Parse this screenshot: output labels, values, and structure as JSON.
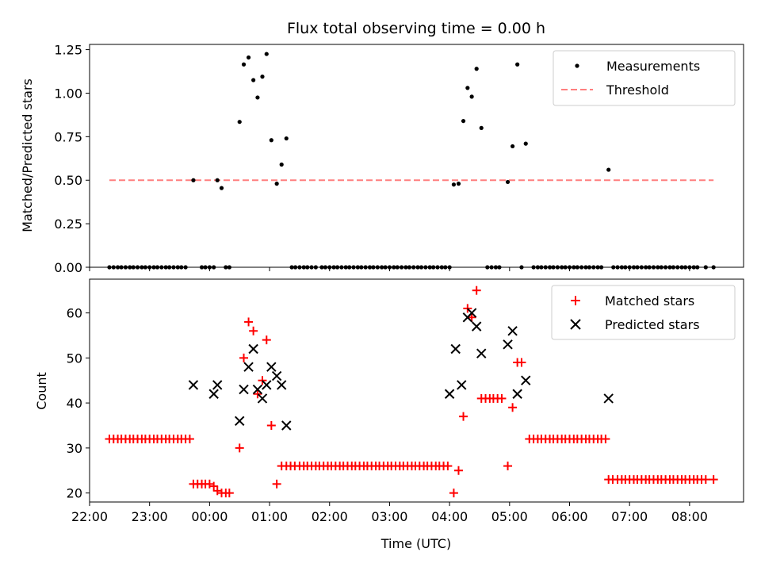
{
  "chart_data": {
    "type": "scatter",
    "title": "Flux total observing time = 0.00 h",
    "xlabel": "Time (UTC)",
    "xlim": [
      22.0,
      32.9
    ],
    "x_ticks": [
      22,
      23,
      24,
      25,
      26,
      27,
      28,
      29,
      30,
      31,
      32
    ],
    "x_tick_labels": [
      "22:00",
      "23:00",
      "00:00",
      "01:00",
      "02:00",
      "03:00",
      "04:00",
      "05:00",
      "06:00",
      "07:00",
      "08:00"
    ],
    "colors": {
      "measurements": "#000000",
      "threshold": "#ff7f7f",
      "matched": "#ff0000",
      "predicted": "#000000"
    },
    "top": {
      "ylabel": "Matched/Predicted stars",
      "ylim": [
        0,
        1.28
      ],
      "y_ticks": [
        0,
        0.25,
        0.5,
        0.75,
        1.0,
        1.25
      ],
      "y_tick_labels": [
        "0.00",
        "0.25",
        "0.50",
        "0.75",
        "1.00",
        "1.25"
      ],
      "legend": {
        "placement": "upper right",
        "measurements_label": "Measurements",
        "threshold_label": "Threshold"
      },
      "threshold": {
        "y": 0.5,
        "x": [
          22.33,
          32.4
        ]
      },
      "measurements": [
        [
          22.33,
          0
        ],
        [
          22.4,
          0
        ],
        [
          22.47,
          0
        ],
        [
          22.53,
          0
        ],
        [
          22.6,
          0
        ],
        [
          22.67,
          0
        ],
        [
          22.73,
          0
        ],
        [
          22.8,
          0
        ],
        [
          22.87,
          0
        ],
        [
          22.93,
          0
        ],
        [
          23.0,
          0
        ],
        [
          23.07,
          0
        ],
        [
          23.13,
          0
        ],
        [
          23.2,
          0
        ],
        [
          23.27,
          0
        ],
        [
          23.33,
          0
        ],
        [
          23.4,
          0
        ],
        [
          23.47,
          0
        ],
        [
          23.53,
          0
        ],
        [
          23.6,
          0
        ],
        [
          23.73,
          0.5
        ],
        [
          23.87,
          0
        ],
        [
          23.93,
          0
        ],
        [
          24.0,
          0
        ],
        [
          24.07,
          0
        ],
        [
          24.13,
          0.5
        ],
        [
          24.2,
          0.455
        ],
        [
          24.27,
          0
        ],
        [
          24.33,
          0
        ],
        [
          24.5,
          0.835
        ],
        [
          24.57,
          1.165
        ],
        [
          24.65,
          1.205
        ],
        [
          24.73,
          1.075
        ],
        [
          24.8,
          0.975
        ],
        [
          24.88,
          1.095
        ],
        [
          24.95,
          1.225
        ],
        [
          25.03,
          0.73
        ],
        [
          25.12,
          0.48
        ],
        [
          25.2,
          0.59
        ],
        [
          25.28,
          0.74
        ],
        [
          25.37,
          0
        ],
        [
          25.43,
          0
        ],
        [
          25.5,
          0
        ],
        [
          25.57,
          0
        ],
        [
          25.63,
          0
        ],
        [
          25.7,
          0
        ],
        [
          25.77,
          0
        ],
        [
          25.87,
          0
        ],
        [
          25.93,
          0
        ],
        [
          26.0,
          0
        ],
        [
          26.07,
          0
        ],
        [
          26.13,
          0
        ],
        [
          26.2,
          0
        ],
        [
          26.27,
          0
        ],
        [
          26.33,
          0
        ],
        [
          26.4,
          0
        ],
        [
          26.47,
          0
        ],
        [
          26.53,
          0
        ],
        [
          26.6,
          0
        ],
        [
          26.67,
          0
        ],
        [
          26.73,
          0
        ],
        [
          26.8,
          0
        ],
        [
          26.87,
          0
        ],
        [
          26.93,
          0
        ],
        [
          27.0,
          0
        ],
        [
          27.07,
          0
        ],
        [
          27.13,
          0
        ],
        [
          27.2,
          0
        ],
        [
          27.27,
          0
        ],
        [
          27.33,
          0
        ],
        [
          27.4,
          0
        ],
        [
          27.47,
          0
        ],
        [
          27.53,
          0
        ],
        [
          27.6,
          0
        ],
        [
          27.67,
          0
        ],
        [
          27.73,
          0
        ],
        [
          27.8,
          0
        ],
        [
          27.87,
          0
        ],
        [
          27.93,
          0
        ],
        [
          28.0,
          0
        ],
        [
          28.07,
          0.475
        ],
        [
          28.15,
          0.48
        ],
        [
          28.23,
          0.84
        ],
        [
          28.3,
          1.03
        ],
        [
          28.37,
          0.98
        ],
        [
          28.45,
          1.14
        ],
        [
          28.53,
          0.8
        ],
        [
          28.63,
          0
        ],
        [
          28.7,
          0
        ],
        [
          28.77,
          0
        ],
        [
          28.83,
          0
        ],
        [
          28.97,
          0.49
        ],
        [
          29.05,
          0.695
        ],
        [
          29.13,
          1.165
        ],
        [
          29.2,
          0
        ],
        [
          29.27,
          0.71
        ],
        [
          29.4,
          0
        ],
        [
          29.47,
          0
        ],
        [
          29.53,
          0
        ],
        [
          29.6,
          0
        ],
        [
          29.67,
          0
        ],
        [
          29.73,
          0
        ],
        [
          29.8,
          0
        ],
        [
          29.87,
          0
        ],
        [
          29.93,
          0
        ],
        [
          30.0,
          0
        ],
        [
          30.07,
          0
        ],
        [
          30.13,
          0
        ],
        [
          30.2,
          0
        ],
        [
          30.27,
          0
        ],
        [
          30.33,
          0
        ],
        [
          30.4,
          0
        ],
        [
          30.47,
          0
        ],
        [
          30.53,
          0
        ],
        [
          30.65,
          0.56
        ],
        [
          30.73,
          0
        ],
        [
          30.8,
          0
        ],
        [
          30.87,
          0
        ],
        [
          30.93,
          0
        ],
        [
          31.0,
          0
        ],
        [
          31.07,
          0
        ],
        [
          31.13,
          0
        ],
        [
          31.2,
          0
        ],
        [
          31.27,
          0
        ],
        [
          31.33,
          0
        ],
        [
          31.4,
          0
        ],
        [
          31.47,
          0
        ],
        [
          31.53,
          0
        ],
        [
          31.6,
          0
        ],
        [
          31.67,
          0
        ],
        [
          31.73,
          0
        ],
        [
          31.8,
          0
        ],
        [
          31.87,
          0
        ],
        [
          31.93,
          0
        ],
        [
          32.0,
          0
        ],
        [
          32.07,
          0
        ],
        [
          32.13,
          0
        ],
        [
          32.27,
          0
        ],
        [
          32.4,
          0
        ]
      ]
    },
    "bottom": {
      "ylabel": "Count",
      "ylim": [
        18,
        67.5
      ],
      "y_ticks": [
        20,
        30,
        40,
        50,
        60
      ],
      "y_tick_labels": [
        "20",
        "30",
        "40",
        "50",
        "60"
      ],
      "legend": {
        "placement": "upper right",
        "matched_label": "Matched stars",
        "predicted_label": "Predicted stars"
      },
      "matched": [
        [
          22.33,
          32
        ],
        [
          22.4,
          32
        ],
        [
          22.47,
          32
        ],
        [
          22.53,
          32
        ],
        [
          22.6,
          32
        ],
        [
          22.67,
          32
        ],
        [
          22.73,
          32
        ],
        [
          22.8,
          32
        ],
        [
          22.87,
          32
        ],
        [
          22.93,
          32
        ],
        [
          23.0,
          32
        ],
        [
          23.07,
          32
        ],
        [
          23.13,
          32
        ],
        [
          23.2,
          32
        ],
        [
          23.27,
          32
        ],
        [
          23.33,
          32
        ],
        [
          23.4,
          32
        ],
        [
          23.47,
          32
        ],
        [
          23.53,
          32
        ],
        [
          23.6,
          32
        ],
        [
          23.67,
          32
        ],
        [
          23.73,
          22
        ],
        [
          23.8,
          22
        ],
        [
          23.87,
          22
        ],
        [
          23.93,
          22
        ],
        [
          24.0,
          22
        ],
        [
          24.07,
          21.5
        ],
        [
          24.13,
          20.5
        ],
        [
          24.2,
          20
        ],
        [
          24.27,
          20
        ],
        [
          24.33,
          20
        ],
        [
          24.5,
          30
        ],
        [
          24.57,
          50
        ],
        [
          24.65,
          58
        ],
        [
          24.73,
          56
        ],
        [
          24.8,
          42
        ],
        [
          24.88,
          45
        ],
        [
          24.95,
          54
        ],
        [
          25.03,
          35
        ],
        [
          25.12,
          22
        ],
        [
          25.2,
          26
        ],
        [
          25.28,
          26
        ],
        [
          25.35,
          26
        ],
        [
          25.42,
          26
        ],
        [
          25.5,
          26
        ],
        [
          25.57,
          26
        ],
        [
          25.63,
          26
        ],
        [
          25.7,
          26
        ],
        [
          25.77,
          26
        ],
        [
          25.83,
          26
        ],
        [
          25.9,
          26
        ],
        [
          25.97,
          26
        ],
        [
          26.03,
          26
        ],
        [
          26.1,
          26
        ],
        [
          26.17,
          26
        ],
        [
          26.23,
          26
        ],
        [
          26.3,
          26
        ],
        [
          26.37,
          26
        ],
        [
          26.43,
          26
        ],
        [
          26.5,
          26
        ],
        [
          26.57,
          26
        ],
        [
          26.63,
          26
        ],
        [
          26.7,
          26
        ],
        [
          26.77,
          26
        ],
        [
          26.83,
          26
        ],
        [
          26.9,
          26
        ],
        [
          26.97,
          26
        ],
        [
          27.03,
          26
        ],
        [
          27.1,
          26
        ],
        [
          27.17,
          26
        ],
        [
          27.23,
          26
        ],
        [
          27.3,
          26
        ],
        [
          27.37,
          26
        ],
        [
          27.43,
          26
        ],
        [
          27.5,
          26
        ],
        [
          27.57,
          26
        ],
        [
          27.63,
          26
        ],
        [
          27.7,
          26
        ],
        [
          27.77,
          26
        ],
        [
          27.83,
          26
        ],
        [
          27.9,
          26
        ],
        [
          27.97,
          26
        ],
        [
          28.07,
          20
        ],
        [
          28.15,
          25
        ],
        [
          28.23,
          37
        ],
        [
          28.3,
          61
        ],
        [
          28.37,
          59
        ],
        [
          28.45,
          65
        ],
        [
          28.53,
          41
        ],
        [
          28.6,
          41
        ],
        [
          28.67,
          41
        ],
        [
          28.73,
          41
        ],
        [
          28.8,
          41
        ],
        [
          28.87,
          41
        ],
        [
          28.97,
          26
        ],
        [
          29.05,
          39
        ],
        [
          29.13,
          49
        ],
        [
          29.2,
          49
        ],
        [
          29.33,
          32
        ],
        [
          29.4,
          32
        ],
        [
          29.47,
          32
        ],
        [
          29.53,
          32
        ],
        [
          29.6,
          32
        ],
        [
          29.67,
          32
        ],
        [
          29.73,
          32
        ],
        [
          29.8,
          32
        ],
        [
          29.87,
          32
        ],
        [
          29.93,
          32
        ],
        [
          30.0,
          32
        ],
        [
          30.07,
          32
        ],
        [
          30.13,
          32
        ],
        [
          30.2,
          32
        ],
        [
          30.27,
          32
        ],
        [
          30.33,
          32
        ],
        [
          30.4,
          32
        ],
        [
          30.47,
          32
        ],
        [
          30.53,
          32
        ],
        [
          30.6,
          32
        ],
        [
          30.65,
          23
        ],
        [
          30.72,
          23
        ],
        [
          30.8,
          23
        ],
        [
          30.87,
          23
        ],
        [
          30.93,
          23
        ],
        [
          31.0,
          23
        ],
        [
          31.07,
          23
        ],
        [
          31.13,
          23
        ],
        [
          31.2,
          23
        ],
        [
          31.27,
          23
        ],
        [
          31.33,
          23
        ],
        [
          31.4,
          23
        ],
        [
          31.47,
          23
        ],
        [
          31.53,
          23
        ],
        [
          31.6,
          23
        ],
        [
          31.67,
          23
        ],
        [
          31.73,
          23
        ],
        [
          31.8,
          23
        ],
        [
          31.87,
          23
        ],
        [
          31.93,
          23
        ],
        [
          32.0,
          23
        ],
        [
          32.07,
          23
        ],
        [
          32.13,
          23
        ],
        [
          32.2,
          23
        ],
        [
          32.27,
          23
        ],
        [
          32.4,
          23
        ]
      ],
      "predicted": [
        [
          23.73,
          44
        ],
        [
          24.07,
          42
        ],
        [
          24.13,
          44
        ],
        [
          24.5,
          36
        ],
        [
          24.57,
          43
        ],
        [
          24.65,
          48
        ],
        [
          24.73,
          52
        ],
        [
          24.8,
          43
        ],
        [
          24.88,
          41
        ],
        [
          24.95,
          44
        ],
        [
          25.03,
          48
        ],
        [
          25.12,
          46
        ],
        [
          25.2,
          44
        ],
        [
          25.28,
          35
        ],
        [
          28.0,
          42
        ],
        [
          28.1,
          52
        ],
        [
          28.2,
          44
        ],
        [
          28.3,
          59
        ],
        [
          28.37,
          60
        ],
        [
          28.45,
          57
        ],
        [
          28.53,
          51
        ],
        [
          28.97,
          53
        ],
        [
          29.05,
          56
        ],
        [
          29.13,
          42
        ],
        [
          29.27,
          45
        ],
        [
          30.65,
          41
        ]
      ]
    }
  }
}
